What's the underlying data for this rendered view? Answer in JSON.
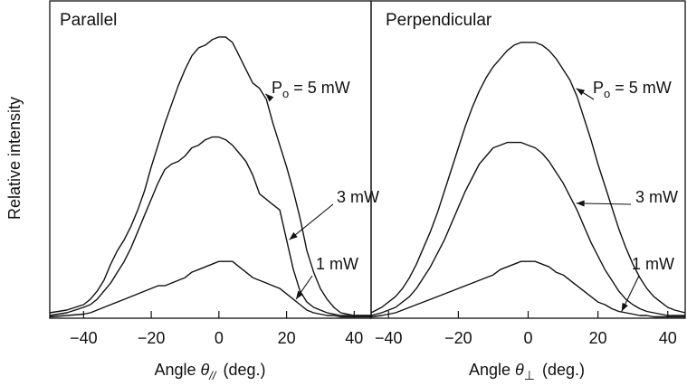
{
  "chart_data": [
    {
      "type": "line",
      "title": "Parallel",
      "xlabel": "Angle θ// (deg.)",
      "xlabel_prefix": "Angle ",
      "xlabel_symbol": "θ",
      "xlabel_subscript": "//",
      "xlabel_suffix": "(deg.)",
      "ylabel": "Relative intensity",
      "xlim": [
        -50,
        45
      ],
      "ylim": [
        0,
        1.15
      ],
      "xticks": [
        -40,
        -20,
        0,
        20,
        40
      ],
      "xtick_labels": [
        "−40",
        "−20",
        "0",
        "20",
        "40"
      ],
      "grid": false,
      "series": [
        {
          "name": "Po = 5 mW",
          "label_main": "P",
          "label_sub": "o",
          "label_rest": " = 5 mW",
          "x": [
            -50,
            -45,
            -40,
            -38,
            -36,
            -34,
            -32,
            -30,
            -28,
            -26,
            -24,
            -22,
            -20,
            -18,
            -16,
            -14,
            -12,
            -10,
            -8,
            -6,
            -4,
            -2,
            0,
            2,
            4,
            6,
            8,
            10,
            12,
            14,
            16,
            18,
            20,
            22,
            24,
            26,
            28,
            30,
            32,
            34,
            36,
            38,
            40,
            42,
            45
          ],
          "y": [
            0.02,
            0.03,
            0.05,
            0.07,
            0.1,
            0.14,
            0.2,
            0.25,
            0.29,
            0.34,
            0.4,
            0.47,
            0.56,
            0.64,
            0.72,
            0.79,
            0.86,
            0.92,
            0.97,
            1.0,
            1.01,
            1.03,
            1.04,
            1.04,
            1.02,
            0.97,
            0.92,
            0.87,
            0.85,
            0.81,
            0.72,
            0.64,
            0.56,
            0.47,
            0.37,
            0.25,
            0.17,
            0.11,
            0.07,
            0.04,
            0.02,
            0.015,
            0.01,
            0.01,
            0.01
          ],
          "arrow_to_x": 13
        },
        {
          "name": "3 mW",
          "label_main": "3 mW",
          "x": [
            -50,
            -45,
            -40,
            -38,
            -36,
            -34,
            -32,
            -30,
            -28,
            -26,
            -24,
            -22,
            -20,
            -18,
            -16,
            -14,
            -12,
            -10,
            -8,
            -6,
            -4,
            -2,
            0,
            2,
            4,
            6,
            8,
            10,
            12,
            14,
            16,
            18,
            20,
            22,
            24,
            26,
            28,
            30,
            32,
            34,
            36,
            38,
            40,
            42,
            45
          ],
          "y": [
            0.01,
            0.02,
            0.04,
            0.05,
            0.07,
            0.1,
            0.13,
            0.17,
            0.21,
            0.26,
            0.32,
            0.38,
            0.44,
            0.5,
            0.55,
            0.57,
            0.58,
            0.6,
            0.63,
            0.64,
            0.66,
            0.67,
            0.67,
            0.66,
            0.64,
            0.61,
            0.58,
            0.53,
            0.46,
            0.44,
            0.42,
            0.4,
            0.29,
            0.18,
            0.1,
            0.06,
            0.04,
            0.03,
            0.02,
            0.015,
            0.01,
            0.01,
            0.01,
            0.01,
            0.01
          ],
          "arrow_to_x": 20
        },
        {
          "name": "1 mW",
          "label_main": "1 mW",
          "x": [
            -50,
            -45,
            -40,
            -38,
            -36,
            -34,
            -32,
            -30,
            -28,
            -26,
            -24,
            -22,
            -20,
            -18,
            -16,
            -14,
            -12,
            -10,
            -8,
            -6,
            -4,
            -2,
            0,
            2,
            4,
            6,
            8,
            10,
            12,
            14,
            16,
            18,
            20,
            22,
            24,
            26,
            28,
            30,
            32,
            34,
            36,
            38,
            40,
            42,
            45
          ],
          "y": [
            0.005,
            0.01,
            0.015,
            0.02,
            0.03,
            0.04,
            0.05,
            0.06,
            0.07,
            0.08,
            0.09,
            0.1,
            0.11,
            0.12,
            0.12,
            0.13,
            0.14,
            0.15,
            0.17,
            0.18,
            0.19,
            0.2,
            0.21,
            0.21,
            0.21,
            0.19,
            0.17,
            0.15,
            0.14,
            0.13,
            0.12,
            0.11,
            0.09,
            0.07,
            0.05,
            0.03,
            0.02,
            0.015,
            0.01,
            0.01,
            0.005,
            0.005,
            0.005,
            0.005,
            0.005
          ],
          "arrow_to_x": 22
        }
      ]
    },
    {
      "type": "line",
      "title": "Perpendicular",
      "xlabel": "Angle θ⊥ (deg.)",
      "xlabel_prefix": "Angle ",
      "xlabel_symbol": "θ",
      "xlabel_subscript": "⊥",
      "xlabel_suffix": "(deg.)",
      "xlim": [
        -45,
        45
      ],
      "ylim": [
        0,
        1.15
      ],
      "xticks": [
        -40,
        -20,
        0,
        20,
        40
      ],
      "xtick_labels": [
        "−40",
        "−20",
        "0",
        "20",
        "40"
      ],
      "grid": false,
      "series": [
        {
          "name": "Po = 5 mW",
          "label_main": "P",
          "label_sub": "o",
          "label_rest": " = 5 mW",
          "x": [
            -45,
            -42,
            -40,
            -38,
            -36,
            -34,
            -32,
            -30,
            -28,
            -26,
            -24,
            -22,
            -20,
            -18,
            -16,
            -14,
            -12,
            -10,
            -8,
            -6,
            -4,
            -2,
            0,
            2,
            4,
            6,
            8,
            10,
            12,
            14,
            16,
            18,
            20,
            22,
            24,
            26,
            28,
            30,
            32,
            34,
            36,
            38,
            40,
            42,
            45
          ],
          "y": [
            0.02,
            0.04,
            0.06,
            0.08,
            0.11,
            0.15,
            0.2,
            0.26,
            0.32,
            0.39,
            0.47,
            0.55,
            0.63,
            0.71,
            0.78,
            0.84,
            0.89,
            0.93,
            0.96,
            0.99,
            1.01,
            1.02,
            1.02,
            1.02,
            1.01,
            0.99,
            0.96,
            0.92,
            0.88,
            0.82,
            0.74,
            0.66,
            0.57,
            0.49,
            0.41,
            0.33,
            0.26,
            0.2,
            0.15,
            0.11,
            0.08,
            0.06,
            0.04,
            0.03,
            0.02
          ],
          "arrow_to_x": 13
        },
        {
          "name": "3 mW",
          "label_main": "3 mW",
          "x": [
            -45,
            -42,
            -40,
            -38,
            -36,
            -34,
            -32,
            -30,
            -28,
            -26,
            -24,
            -22,
            -20,
            -18,
            -16,
            -14,
            -12,
            -10,
            -8,
            -6,
            -4,
            -2,
            0,
            2,
            4,
            6,
            8,
            10,
            12,
            14,
            16,
            18,
            20,
            22,
            24,
            26,
            28,
            30,
            32,
            34,
            36,
            38,
            40,
            42,
            45
          ],
          "y": [
            0.01,
            0.02,
            0.03,
            0.04,
            0.06,
            0.08,
            0.11,
            0.15,
            0.19,
            0.24,
            0.29,
            0.35,
            0.41,
            0.47,
            0.52,
            0.57,
            0.6,
            0.63,
            0.64,
            0.65,
            0.65,
            0.65,
            0.64,
            0.63,
            0.61,
            0.58,
            0.54,
            0.5,
            0.45,
            0.4,
            0.34,
            0.28,
            0.23,
            0.18,
            0.14,
            0.1,
            0.07,
            0.05,
            0.035,
            0.025,
            0.02,
            0.015,
            0.01,
            0.01,
            0.01
          ],
          "arrow_to_x": 13
        },
        {
          "name": "1 mW",
          "label_main": "1 mW",
          "x": [
            -45,
            -42,
            -40,
            -38,
            -36,
            -34,
            -32,
            -30,
            -28,
            -26,
            -24,
            -22,
            -20,
            -18,
            -16,
            -14,
            -12,
            -10,
            -8,
            -6,
            -4,
            -2,
            0,
            2,
            4,
            6,
            8,
            10,
            12,
            14,
            16,
            18,
            20,
            22,
            24,
            26,
            28,
            30,
            32,
            34,
            36,
            38,
            40,
            42,
            45
          ],
          "y": [
            0.005,
            0.01,
            0.015,
            0.02,
            0.03,
            0.04,
            0.05,
            0.06,
            0.07,
            0.08,
            0.09,
            0.1,
            0.11,
            0.12,
            0.13,
            0.14,
            0.15,
            0.16,
            0.18,
            0.19,
            0.2,
            0.21,
            0.21,
            0.21,
            0.2,
            0.19,
            0.17,
            0.16,
            0.14,
            0.12,
            0.1,
            0.08,
            0.06,
            0.05,
            0.035,
            0.025,
            0.02,
            0.015,
            0.01,
            0.01,
            0.005,
            0.005,
            0.005,
            0.005,
            0.005
          ],
          "arrow_to_x": 26
        }
      ]
    }
  ]
}
